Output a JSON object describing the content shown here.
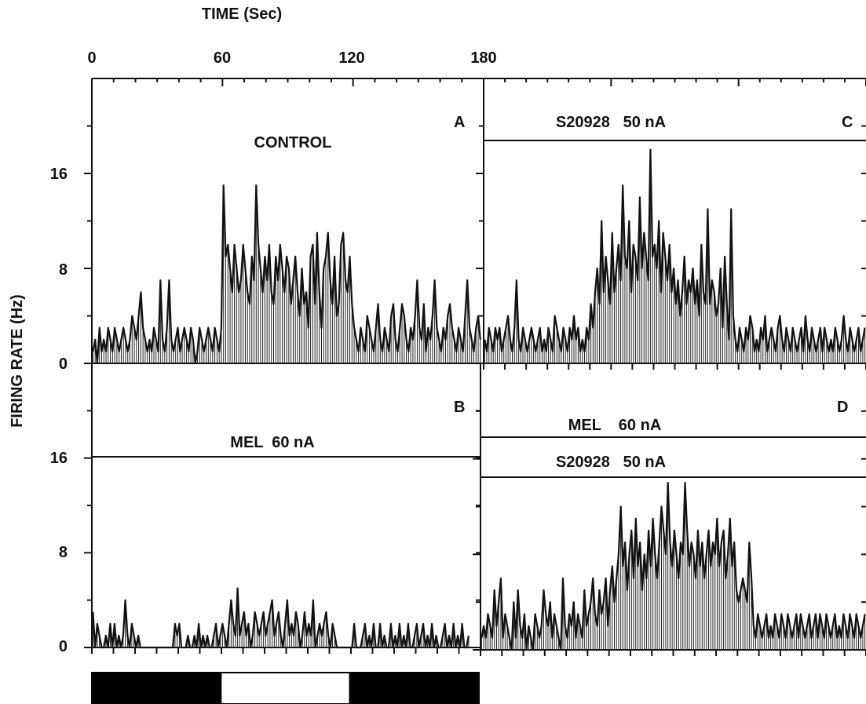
{
  "figure": {
    "top_axis_title": "TIME (Sec)",
    "top_ticks": [
      "0",
      "60",
      "120",
      "180"
    ],
    "y_axis_title": "FIRING RATE (Hz)",
    "y_ticks": [
      "0",
      "8",
      "16"
    ],
    "light_bar": [
      {
        "start": 0,
        "end": 60,
        "state": "dark"
      },
      {
        "start": 60,
        "end": 120,
        "state": "light"
      },
      {
        "start": 120,
        "end": 180,
        "state": "dark"
      }
    ],
    "colors": {
      "ink": "#111111",
      "background": "#ffffff"
    }
  },
  "chart_data": [
    {
      "type": "line",
      "panel": "A",
      "label": "CONTROL",
      "drug_lines": [],
      "xlim": [
        0,
        180
      ],
      "ylim": [
        0,
        24
      ],
      "bin_sec": 1,
      "values": [
        1,
        2,
        0,
        3,
        1,
        2,
        1,
        3,
        2,
        1,
        3,
        2,
        1,
        2,
        3,
        2,
        1,
        2,
        4,
        3,
        2,
        4,
        6,
        3,
        2,
        1,
        2,
        1,
        3,
        2,
        1,
        7,
        2,
        1,
        3,
        7,
        2,
        1,
        2,
        3,
        1,
        2,
        3,
        2,
        1,
        3,
        2,
        0,
        1,
        3,
        2,
        1,
        2,
        3,
        2,
        1,
        3,
        2,
        1,
        3,
        15,
        9,
        10,
        8,
        6,
        10,
        8,
        6,
        7,
        10,
        8,
        6,
        5,
        9,
        7,
        15,
        10,
        8,
        6,
        9,
        7,
        10,
        6,
        5,
        9,
        7,
        10,
        8,
        6,
        9,
        8,
        5,
        7,
        9,
        6,
        4,
        8,
        5,
        6,
        3,
        9,
        10,
        5,
        11,
        6,
        3,
        8,
        9,
        11,
        7,
        5,
        9,
        4,
        5,
        10,
        11,
        7,
        6,
        9,
        5,
        3,
        2,
        1,
        3,
        2,
        1,
        4,
        3,
        2,
        1,
        3,
        5,
        2,
        1,
        3,
        2,
        1,
        4,
        5,
        2,
        1,
        3,
        5,
        4,
        2,
        1,
        3,
        2,
        4,
        7,
        3,
        2,
        5,
        1,
        3,
        2,
        4,
        7,
        3,
        2,
        1,
        3,
        2,
        4,
        5,
        3,
        2,
        1,
        3,
        2,
        1,
        4,
        7,
        3,
        2,
        1,
        3,
        4,
        2
      ]
    },
    {
      "type": "line",
      "panel": "B",
      "label": "",
      "drug_lines": [
        "MEL  60 nA"
      ],
      "xlim": [
        0,
        180
      ],
      "ylim": [
        0,
        24
      ],
      "bin_sec": 1,
      "values": [
        3,
        0,
        2,
        1,
        0,
        0,
        1,
        0,
        2,
        0,
        2,
        0,
        1,
        0,
        1,
        4,
        1,
        0,
        2,
        1,
        0,
        1,
        0,
        0,
        0,
        0,
        0,
        0,
        0,
        0,
        0,
        0,
        0,
        0,
        0,
        0,
        0,
        0,
        2,
        1,
        2,
        0,
        0,
        0,
        1,
        0,
        0,
        1,
        0,
        2,
        0,
        1,
        0,
        1,
        0,
        0,
        1,
        2,
        0,
        1,
        2,
        1,
        0,
        2,
        4,
        2,
        1,
        5,
        1,
        2,
        3,
        1,
        2,
        0,
        1,
        3,
        2,
        1,
        2,
        3,
        1,
        2,
        3,
        4,
        1,
        2,
        3,
        1,
        0,
        2,
        4,
        1,
        2,
        1,
        3,
        2,
        0,
        1,
        3,
        1,
        2,
        1,
        4,
        0,
        1,
        2,
        1,
        2,
        3,
        1,
        0,
        2,
        1,
        0,
        0,
        0,
        0,
        0,
        0,
        0,
        0,
        2,
        0,
        0,
        0,
        1,
        2,
        0,
        1,
        0,
        2,
        0,
        0,
        2,
        0,
        1,
        0,
        0,
        2,
        0,
        1,
        0,
        2,
        0,
        1,
        0,
        2,
        0,
        0,
        1,
        2,
        0,
        1,
        2,
        0,
        1,
        0,
        2,
        0,
        1,
        0,
        0,
        1,
        2,
        0,
        1,
        0,
        2,
        0,
        1,
        0,
        2,
        0,
        0,
        1
      ]
    },
    {
      "type": "line",
      "panel": "C",
      "label": "",
      "drug_lines": [
        "S20928   50 nA"
      ],
      "xlim": [
        0,
        180
      ],
      "ylim": [
        0,
        24
      ],
      "bin_sec": 1,
      "values": [
        2,
        1,
        3,
        2,
        1,
        3,
        2,
        3,
        1,
        2,
        3,
        4,
        2,
        1,
        3,
        7,
        2,
        1,
        3,
        2,
        1,
        2,
        3,
        2,
        1,
        2,
        3,
        1,
        2,
        1,
        3,
        2,
        1,
        4,
        3,
        2,
        1,
        3,
        2,
        1,
        3,
        2,
        4,
        2,
        3,
        1,
        2,
        1,
        3,
        2,
        5,
        3,
        6,
        8,
        5,
        12,
        6,
        9,
        7,
        5,
        11,
        6,
        8,
        10,
        7,
        15,
        9,
        8,
        12,
        6,
        10,
        9,
        7,
        14,
        8,
        11,
        9,
        7,
        18,
        9,
        10,
        8,
        12,
        6,
        11,
        9,
        7,
        10,
        6,
        8,
        5,
        7,
        4,
        6,
        9,
        5,
        7,
        6,
        8,
        5,
        7,
        4,
        10,
        6,
        5,
        13,
        5,
        7,
        6,
        4,
        5,
        8,
        3,
        9,
        5,
        2,
        13,
        4,
        2,
        1,
        3,
        2,
        1,
        3,
        2,
        4,
        3,
        1,
        2,
        1,
        3,
        2,
        4,
        1,
        2,
        3,
        2,
        1,
        3,
        4,
        2,
        1,
        3,
        2,
        1,
        3,
        2,
        1,
        2,
        3,
        1,
        4,
        2,
        1,
        3,
        2,
        1,
        2,
        3,
        1,
        3,
        2,
        1,
        2,
        1,
        3,
        2,
        1,
        2,
        4,
        2,
        1,
        3,
        2,
        1,
        2,
        3,
        1,
        2,
        3
      ]
    },
    {
      "type": "line",
      "panel": "D",
      "label": "",
      "drug_lines": [
        "MEL    60 nA",
        "S20928   50 nA"
      ],
      "xlim": [
        0,
        180
      ],
      "ylim": [
        0,
        24
      ],
      "bin_sec": 1,
      "values": [
        1,
        2,
        1,
        3,
        2,
        1,
        5,
        2,
        4,
        6,
        1,
        3,
        2,
        1,
        0,
        4,
        1,
        5,
        2,
        1,
        3,
        0,
        2,
        1,
        0,
        3,
        2,
        1,
        2,
        5,
        3,
        2,
        4,
        1,
        3,
        2,
        1,
        0,
        6,
        2,
        1,
        3,
        2,
        4,
        1,
        3,
        2,
        1,
        5,
        2,
        3,
        4,
        6,
        3,
        2,
        5,
        3,
        4,
        6,
        2,
        5,
        7,
        4,
        6,
        8,
        12,
        7,
        9,
        5,
        8,
        10,
        6,
        11,
        7,
        9,
        5,
        8,
        6,
        10,
        7,
        11,
        8,
        6,
        9,
        12,
        10,
        8,
        14,
        9,
        7,
        10,
        8,
        6,
        9,
        8,
        14,
        10,
        7,
        9,
        8,
        6,
        10,
        7,
        9,
        6,
        8,
        10,
        7,
        9,
        8,
        11,
        7,
        9,
        10,
        6,
        8,
        11,
        7,
        9,
        5,
        4,
        5,
        6,
        5,
        4,
        9,
        6,
        2,
        1,
        3,
        2,
        1,
        2,
        3,
        1,
        2,
        1,
        3,
        2,
        1,
        3,
        2,
        1,
        3,
        2,
        1,
        2,
        3,
        1,
        3,
        2,
        1,
        2,
        3,
        1,
        2,
        3,
        1,
        3,
        2,
        1,
        3,
        2,
        1,
        2,
        3,
        1,
        2,
        1,
        3,
        2,
        1,
        3,
        2,
        1,
        3,
        2,
        1,
        2,
        3
      ]
    }
  ]
}
